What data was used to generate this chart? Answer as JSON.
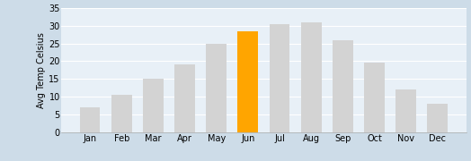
{
  "categories": [
    "Jan",
    "Feb",
    "Mar",
    "Apr",
    "May",
    "Jun",
    "Jul",
    "Aug",
    "Sep",
    "Oct",
    "Nov",
    "Dec"
  ],
  "values": [
    7,
    10.5,
    15,
    19,
    25,
    28.5,
    30.5,
    31,
    26,
    19.5,
    12,
    8
  ],
  "bar_colors": [
    "#d3d3d3",
    "#d3d3d3",
    "#d3d3d3",
    "#d3d3d3",
    "#d3d3d3",
    "#FFA500",
    "#d3d3d3",
    "#d3d3d3",
    "#d3d3d3",
    "#d3d3d3",
    "#d3d3d3",
    "#d3d3d3"
  ],
  "ylabel": "Avg Temp Celsius",
  "ylim": [
    0,
    35
  ],
  "yticks": [
    0,
    5,
    10,
    15,
    20,
    25,
    30,
    35
  ],
  "outer_bg_color": "#cddce8",
  "plot_bg_color": "#e8f0f7",
  "grid_color": "#ffffff",
  "bar_width": 0.65,
  "ylabel_fontsize": 7,
  "tick_fontsize": 7
}
